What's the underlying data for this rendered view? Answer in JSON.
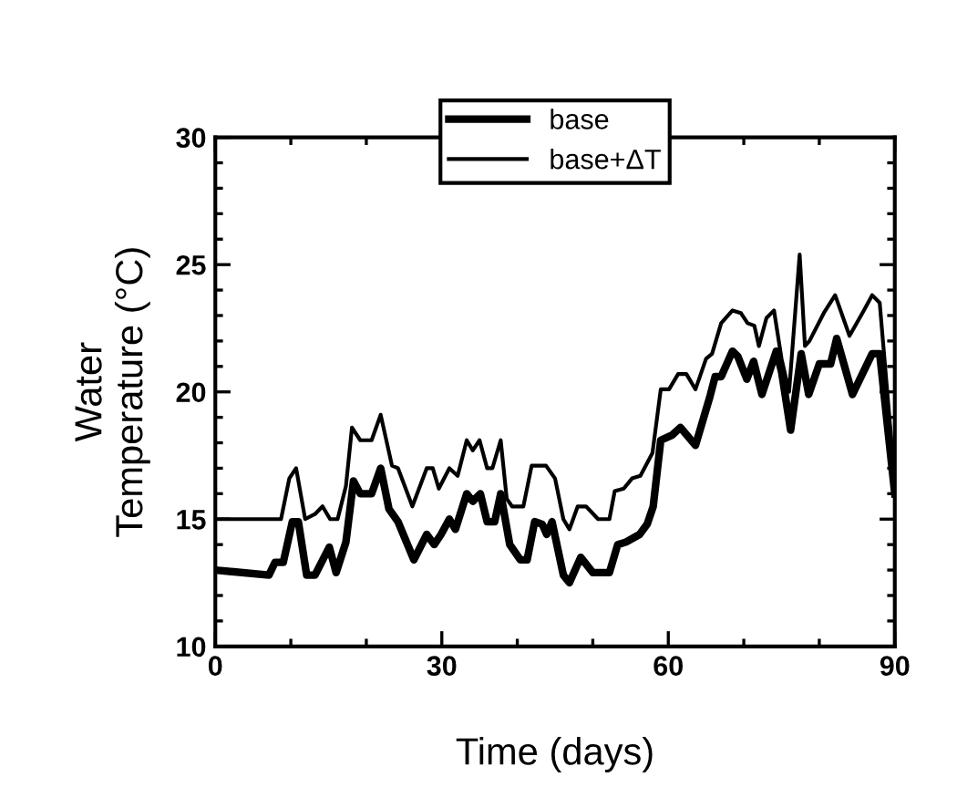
{
  "chart_data": {
    "type": "line",
    "xlabel": "Time (days)",
    "ylabel": "Water\nTemperature (°C)",
    "xlim": [
      0,
      90
    ],
    "ylim": [
      10,
      30
    ],
    "xticks": [
      0,
      {
        "value": 10,
        "label": null
      },
      {
        "value": 20,
        "label": null
      },
      30,
      {
        "value": 40,
        "label": null
      },
      {
        "value": 50,
        "label": null
      },
      60,
      {
        "value": 70,
        "label": null
      },
      {
        "value": 80,
        "label": null
      },
      90
    ],
    "yticks": [
      10,
      {
        "value": 11,
        "label": null
      },
      {
        "value": 12,
        "label": null
      },
      {
        "value": 13,
        "label": null
      },
      {
        "value": 14,
        "label": null
      },
      15,
      {
        "value": 16,
        "label": null
      },
      {
        "value": 17,
        "label": null
      },
      {
        "value": 18,
        "label": null
      },
      {
        "value": 19,
        "label": null
      },
      20,
      {
        "value": 21,
        "label": null
      },
      {
        "value": 22,
        "label": null
      },
      {
        "value": 23,
        "label": null
      },
      {
        "value": 24,
        "label": null
      },
      25,
      {
        "value": 26,
        "label": null
      },
      {
        "value": 27,
        "label": null
      },
      {
        "value": 28,
        "label": null
      },
      {
        "value": 29,
        "label": null
      },
      30
    ],
    "grid": false,
    "legend": "top",
    "marker": "none",
    "line_style": "solid",
    "series": [
      {
        "name": "base",
        "color": "#000000",
        "x": [
          0,
          7.1,
          7.9,
          9,
          10.2,
          11,
          12.1,
          13.2,
          15.1,
          16,
          17.3,
          18.3,
          19.2,
          20.7,
          21.9,
          23,
          24.2,
          26.3,
          28,
          29,
          29.9,
          31,
          31.8,
          33.3,
          34.1,
          35.1,
          36,
          37,
          37.8,
          39,
          40.4,
          41.3,
          42.3,
          43.3,
          43.9,
          44.6,
          46.1,
          46.9,
          48.4,
          50,
          52.2,
          53.3,
          54.4,
          56.2,
          57.2,
          58,
          59,
          60.5,
          61.6,
          63.6,
          65.5,
          66.2,
          67,
          68.5,
          69.2,
          70.4,
          71.3,
          72.4,
          74.3,
          75,
          76.2,
          77.6,
          78.6,
          80,
          81.5,
          82.3,
          84.4,
          87,
          88,
          90
        ],
        "values": [
          13,
          12.8,
          13.3,
          13.3,
          14.9,
          14.9,
          12.8,
          12.8,
          13.9,
          12.9,
          14.1,
          16.5,
          16,
          16,
          17,
          15.4,
          14.9,
          13.4,
          14.4,
          14,
          14.4,
          15,
          14.6,
          16,
          15.7,
          16,
          14.9,
          14.9,
          16,
          14,
          13.4,
          13.4,
          14.9,
          14.8,
          14.4,
          14.9,
          12.8,
          12.5,
          13.5,
          12.9,
          12.9,
          14,
          14.1,
          14.4,
          14.8,
          15.5,
          18.1,
          18.3,
          18.6,
          17.9,
          19.8,
          20.6,
          20.6,
          21.6,
          21.4,
          20.5,
          21.2,
          19.9,
          21.6,
          20.8,
          18.5,
          21.5,
          19.9,
          21.1,
          21.1,
          22.1,
          19.9,
          21.5,
          21.5,
          16
        ]
      },
      {
        "name": "base+ΔT",
        "color": "#000000",
        "x": [
          0,
          8.7,
          9.8,
          10.7,
          11.9,
          13.2,
          14.2,
          15.2,
          16.2,
          17.3,
          18.1,
          19.2,
          20.7,
          21.9,
          23.4,
          24.2,
          26.1,
          28,
          28.8,
          29.6,
          31,
          32.1,
          33.3,
          34.1,
          35,
          36,
          36.7,
          37.8,
          38.6,
          39.3,
          40.8,
          41.9,
          43.8,
          45,
          46.1,
          46.9,
          48,
          49.1,
          50.7,
          52.2,
          52.9,
          54.1,
          55.2,
          56.3,
          57.9,
          59,
          60.1,
          61.3,
          62.4,
          63.6,
          65,
          65.8,
          67,
          68.5,
          69.6,
          70.5,
          71.4,
          72,
          73,
          74,
          75,
          76,
          77.4,
          78.1,
          78.7,
          80.6,
          82.1,
          84,
          85.9,
          87,
          88,
          90
        ],
        "values": [
          15,
          15,
          16.6,
          17,
          15,
          15.2,
          15.5,
          15,
          15,
          16.3,
          18.6,
          18.1,
          18.1,
          19.1,
          17.1,
          17,
          15.5,
          17,
          17,
          16.2,
          17,
          16.7,
          18.1,
          17.7,
          18.1,
          17,
          17,
          18.1,
          15.8,
          15.5,
          15.5,
          17.1,
          17.1,
          16.6,
          15,
          14.6,
          15.5,
          15.5,
          15,
          15,
          16.1,
          16.2,
          16.6,
          16.7,
          17.6,
          20.1,
          20.1,
          20.7,
          20.7,
          20.1,
          21.3,
          21.5,
          22.7,
          23.2,
          23.1,
          22.7,
          22.6,
          21.8,
          22.9,
          23.2,
          21.3,
          20,
          25.4,
          21.8,
          22,
          23.1,
          23.8,
          22.2,
          23.2,
          23.8,
          23.5,
          16.5
        ]
      }
    ]
  }
}
